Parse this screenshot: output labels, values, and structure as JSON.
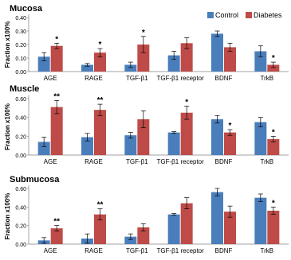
{
  "legend": {
    "items": [
      {
        "label": "Control",
        "color": "#4a7ebb"
      },
      {
        "label": "Diabetes",
        "color": "#be4b48"
      }
    ]
  },
  "chart_data": [
    {
      "type": "bar",
      "title": "Mucosa",
      "ylabel": "Fraction x100%",
      "ylim": [
        0,
        0.4
      ],
      "yticks": [
        "0.00",
        "0.10",
        "0.20",
        "0.30",
        "0.40"
      ],
      "categories": [
        "AGE",
        "RAGE",
        "TGF-β1",
        "TGF-β1 receptor",
        "BDNF",
        "TrkB"
      ],
      "series": [
        {
          "name": "Control",
          "values": [
            0.11,
            0.05,
            0.05,
            0.12,
            0.28,
            0.15
          ],
          "errors": [
            0.03,
            0.01,
            0.02,
            0.03,
            0.02,
            0.04
          ]
        },
        {
          "name": "Diabetes",
          "values": [
            0.19,
            0.14,
            0.2,
            0.21,
            0.18,
            0.05
          ],
          "errors": [
            0.02,
            0.03,
            0.06,
            0.04,
            0.03,
            0.02
          ]
        }
      ],
      "significance": [
        "*",
        "*",
        "*",
        "",
        "",
        "*"
      ]
    },
    {
      "type": "bar",
      "title": "Muscle",
      "ylabel": "Fraction x100%",
      "ylim": [
        0,
        0.6
      ],
      "yticks": [
        "0.00",
        "0.20",
        "0.40",
        "0.60"
      ],
      "categories": [
        "AGE",
        "RAGE",
        "TGF-β1",
        "TGF-β1 receptor",
        "BDNF",
        "TrkB"
      ],
      "series": [
        {
          "name": "Control",
          "values": [
            0.14,
            0.19,
            0.21,
            0.24,
            0.38,
            0.35
          ],
          "errors": [
            0.05,
            0.04,
            0.03,
            0.01,
            0.04,
            0.05
          ]
        },
        {
          "name": "Diabetes",
          "values": [
            0.51,
            0.48,
            0.38,
            0.45,
            0.24,
            0.17
          ],
          "errors": [
            0.07,
            0.06,
            0.09,
            0.07,
            0.03,
            0.03
          ]
        }
      ],
      "significance": [
        "**",
        "**",
        "",
        "*",
        "*",
        "*"
      ]
    },
    {
      "type": "bar",
      "title": "Submucosa",
      "ylabel": "Fraction x100%",
      "ylim": [
        0,
        0.6
      ],
      "yticks": [
        "0.00",
        "0.20",
        "0.40",
        "0.60"
      ],
      "categories": [
        "AGE",
        "RAGE",
        "TGF-β1",
        "TGF-β1 receptor",
        "BDNF",
        "TrkB"
      ],
      "series": [
        {
          "name": "Control",
          "values": [
            0.04,
            0.06,
            0.08,
            0.32,
            0.56,
            0.5
          ],
          "errors": [
            0.03,
            0.05,
            0.03,
            0.01,
            0.04,
            0.04
          ]
        },
        {
          "name": "Diabetes",
          "values": [
            0.17,
            0.32,
            0.18,
            0.44,
            0.35,
            0.36
          ],
          "errors": [
            0.03,
            0.06,
            0.04,
            0.06,
            0.06,
            0.04
          ]
        }
      ],
      "significance": [
        "**",
        "**",
        "",
        "",
        "",
        "*"
      ]
    }
  ]
}
